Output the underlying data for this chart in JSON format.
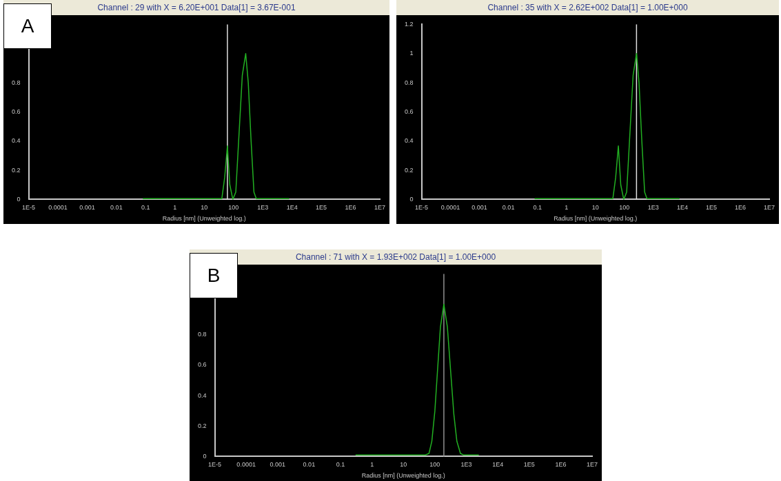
{
  "chart_data": [
    {
      "type": "line",
      "title": "Channel :  29 with X = 6.20E+001  Data[1] = 3.67E-001",
      "xlabel": "Radius [nm] (Unweighted log.)",
      "log": "x",
      "xlim": [
        1e-05,
        10000000
      ],
      "xticks": [
        {
          "value": 1e-05,
          "label": "1E-5"
        },
        0.0001,
        0.001,
        0.01,
        0.1,
        1,
        10,
        100,
        {
          "value": 1000,
          "label": "1E3"
        },
        {
          "value": 10000,
          "label": "1E4"
        },
        {
          "value": 100000,
          "label": "1E5"
        },
        {
          "value": 1000000,
          "label": "1E6"
        },
        {
          "value": 10000000,
          "label": "1E7"
        }
      ],
      "ylim": [
        0,
        1.2
      ],
      "yticks": [
        0,
        0.2,
        0.4,
        0.6,
        0.8
      ],
      "annotations": [
        "A"
      ],
      "ref_lines": [
        {
          "axis": "x",
          "value": 62,
          "color": "#e0e0e0"
        }
      ],
      "series": [
        {
          "color": "#22b022",
          "x": [
            0.08,
            1,
            10,
            40,
            50,
            62,
            75,
            95,
            120,
            150,
            200,
            262,
            320,
            400,
            500,
            600,
            2000,
            8000
          ],
          "values": [
            0.005,
            0.005,
            0.005,
            0.005,
            0.15,
            0.367,
            0.1,
            0,
            0.05,
            0.4,
            0.85,
            1.0,
            0.8,
            0.4,
            0.05,
            0.005,
            0.005,
            0.005
          ]
        }
      ]
    },
    {
      "type": "line",
      "title": "Channel :  35 with X = 2.62E+002  Data[1] = 1.00E+000",
      "xlabel": "Radius [nm] (Unweighted log.)",
      "log": "x",
      "xlim": [
        1e-05,
        10000000
      ],
      "xticks": [
        {
          "value": 1e-05,
          "label": "1E-5"
        },
        0.0001,
        0.001,
        0.01,
        0.1,
        1,
        10,
        100,
        {
          "value": 1000,
          "label": "1E3"
        },
        {
          "value": 10000,
          "label": "1E4"
        },
        {
          "value": 100000,
          "label": "1E5"
        },
        {
          "value": 1000000,
          "label": "1E6"
        },
        {
          "value": 10000000,
          "label": "1E7"
        }
      ],
      "ylim": [
        0,
        1.2
      ],
      "yticks": [
        0,
        0.2,
        0.4,
        0.6,
        0.8,
        1,
        1.2
      ],
      "ref_lines": [
        {
          "axis": "x",
          "value": 262,
          "color": "#e0e0e0"
        }
      ],
      "series": [
        {
          "color": "#22b022",
          "x": [
            0.08,
            1,
            10,
            40,
            50,
            62,
            75,
            95,
            120,
            150,
            200,
            262,
            320,
            400,
            500,
            600,
            2000,
            8000
          ],
          "values": [
            0.005,
            0.005,
            0.005,
            0.005,
            0.15,
            0.367,
            0.1,
            0,
            0.05,
            0.4,
            0.85,
            1.0,
            0.8,
            0.4,
            0.05,
            0.005,
            0.005,
            0.005
          ]
        }
      ]
    },
    {
      "type": "line",
      "title": "Channel :  71 with X = 1.93E+002  Data[1] = 1.00E+000",
      "xlabel": "Radius [nm] (Unweighted log.)",
      "log": "x",
      "xlim": [
        1e-05,
        10000000
      ],
      "xticks": [
        {
          "value": 1e-05,
          "label": "1E-5"
        },
        0.0001,
        0.001,
        0.01,
        0.1,
        1,
        10,
        100,
        {
          "value": 1000,
          "label": "1E3"
        },
        {
          "value": 10000,
          "label": "1E4"
        },
        {
          "value": 100000,
          "label": "1E5"
        },
        {
          "value": 1000000,
          "label": "1E6"
        },
        {
          "value": 10000000,
          "label": "1E7"
        }
      ],
      "ylim": [
        0,
        1.2
      ],
      "yticks": [
        0,
        0.2,
        0.4,
        0.6,
        0.8
      ],
      "annotations": [
        "B"
      ],
      "ref_lines": [
        {
          "axis": "x",
          "value": 193,
          "color": "#909090"
        }
      ],
      "series": [
        {
          "color": "#22b022",
          "x": [
            0.3,
            10,
            50,
            65,
            80,
            100,
            120,
            150,
            193,
            250,
            320,
            400,
            500,
            650,
            800,
            2500
          ],
          "values": [
            0.01,
            0.01,
            0.01,
            0.02,
            0.1,
            0.3,
            0.55,
            0.85,
            1.0,
            0.85,
            0.55,
            0.28,
            0.1,
            0.02,
            0.01,
            0.01
          ]
        }
      ]
    }
  ]
}
